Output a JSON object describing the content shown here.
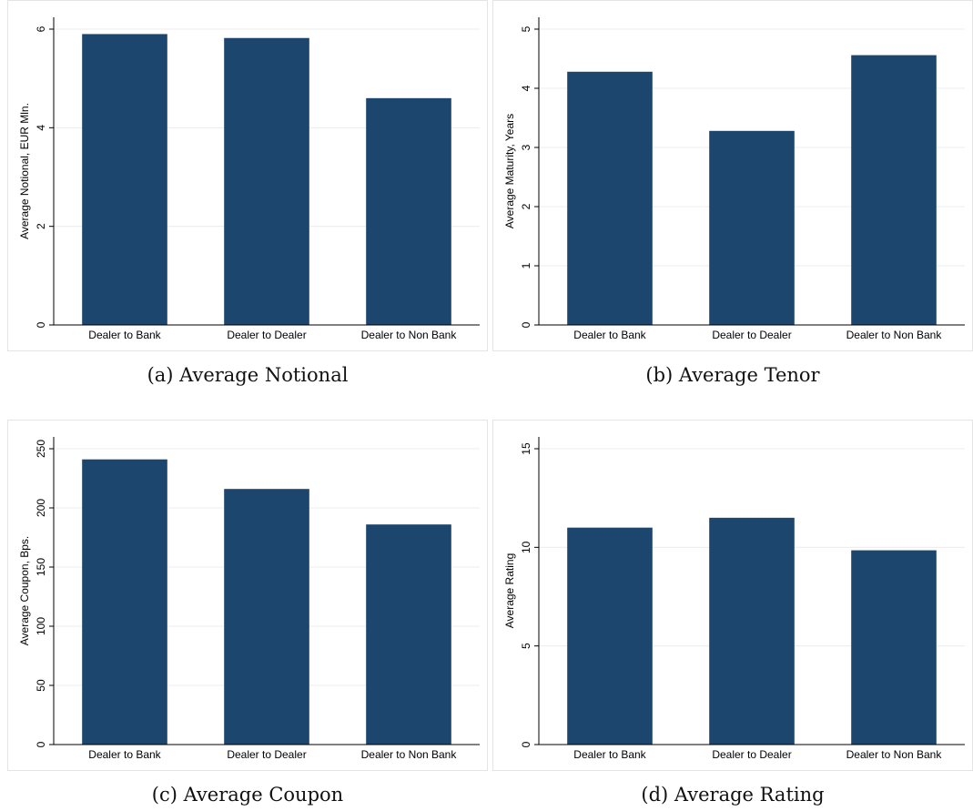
{
  "panels": [
    {
      "caption": "(a) Average Notional",
      "chart_data": {
        "type": "bar",
        "categories": [
          "Dealer to Bank",
          "Dealer to Dealer",
          "Dealer to Non Bank"
        ],
        "values": [
          5.9,
          5.82,
          4.6
        ],
        "ylabel": "Average Notional, EUR Mln.",
        "ylim": [
          0,
          6
        ],
        "yticks": [
          0,
          2,
          4,
          6
        ],
        "ytick_labels": [
          "0",
          "2",
          "4",
          "6"
        ],
        "grid": true,
        "bar_color": "#1c466e"
      }
    },
    {
      "caption": "(b) Average Tenor",
      "chart_data": {
        "type": "bar",
        "categories": [
          "Dealer to Bank",
          "Dealer to Dealer",
          "Dealer to Non Bank"
        ],
        "values": [
          4.28,
          3.28,
          4.56
        ],
        "ylabel": "Average Maturity, Years",
        "ylim": [
          0,
          5
        ],
        "yticks": [
          0,
          1,
          2,
          3,
          4,
          5
        ],
        "ytick_labels": [
          "0",
          "1",
          "2",
          "3",
          "4",
          "5"
        ],
        "grid": true,
        "bar_color": "#1c466e"
      }
    },
    {
      "caption": "(c) Average Coupon",
      "chart_data": {
        "type": "bar",
        "categories": [
          "Dealer to Bank",
          "Dealer to Dealer",
          "Dealer to Non Bank"
        ],
        "values": [
          241,
          216,
          186
        ],
        "ylabel": "Average Coupon, Bps.",
        "ylim": [
          0,
          250
        ],
        "yticks": [
          0,
          50,
          100,
          150,
          200,
          250
        ],
        "ytick_labels": [
          "0",
          "50",
          "100",
          "150",
          "200",
          "250"
        ],
        "grid": true,
        "bar_color": "#1c466e"
      }
    },
    {
      "caption": "(d) Average Rating",
      "chart_data": {
        "type": "bar",
        "categories": [
          "Dealer to Bank",
          "Dealer to Dealer",
          "Dealer to Non Bank"
        ],
        "values": [
          11.0,
          11.5,
          9.85
        ],
        "ylabel": "Average Rating",
        "ylim": [
          0,
          15
        ],
        "yticks": [
          0,
          5,
          10,
          15
        ],
        "ytick_labels": [
          "0",
          "5",
          "10",
          "15"
        ],
        "grid": true,
        "bar_color": "#1c466e"
      }
    }
  ]
}
